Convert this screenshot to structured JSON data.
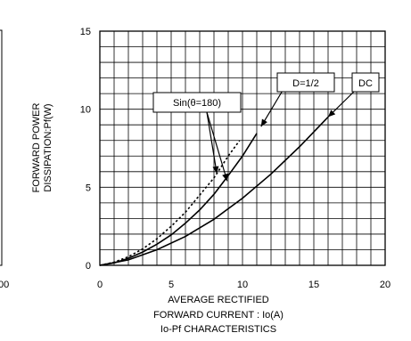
{
  "chart_data": {
    "type": "line",
    "xlim": [
      0,
      20
    ],
    "ylim": [
      0,
      15
    ],
    "x_ticks": [
      "0",
      "5",
      "10",
      "15",
      "20"
    ],
    "y_ticks": [
      "0",
      "5",
      "10",
      "15"
    ],
    "grid": true,
    "ylabel_lines": [
      "FORWARD POWER",
      "DISSIPATION:Pf(W)"
    ],
    "xlabel_lines": [
      "AVERAGE RECTIFIED",
      "FORWARD CURRENT : Io(A)"
    ],
    "caption": "Io-Pf CHARACTERISTICS",
    "left_edge_text": "00",
    "series": [
      {
        "name": "Sin(θ=180)",
        "style": "dotted",
        "x": [
          0,
          1,
          2,
          3,
          4,
          5,
          6,
          7,
          8,
          9,
          9.8
        ],
        "y": [
          0,
          0.2,
          0.55,
          1.05,
          1.7,
          2.5,
          3.4,
          4.5,
          5.6,
          7.0,
          8.0
        ]
      },
      {
        "name": "D=1/2",
        "style": "solid",
        "x": [
          0,
          1,
          2,
          3,
          4,
          5,
          6,
          7,
          8,
          9,
          10,
          11
        ],
        "y": [
          0,
          0.15,
          0.45,
          0.85,
          1.35,
          1.95,
          2.7,
          3.55,
          4.55,
          5.75,
          7.0,
          8.45
        ]
      },
      {
        "name": "DC",
        "style": "solid",
        "x": [
          0,
          2,
          4,
          6,
          8,
          10,
          12,
          14,
          16
        ],
        "y": [
          0,
          0.35,
          1.0,
          1.85,
          2.95,
          4.3,
          5.85,
          7.6,
          9.5
        ]
      }
    ],
    "annotations": [
      {
        "text": "Sin(θ=180)",
        "target_series": "Sin(θ=180)"
      },
      {
        "text": "D=1/2",
        "target_series": "D=1/2"
      },
      {
        "text": "DC",
        "target_series": "DC"
      }
    ]
  }
}
